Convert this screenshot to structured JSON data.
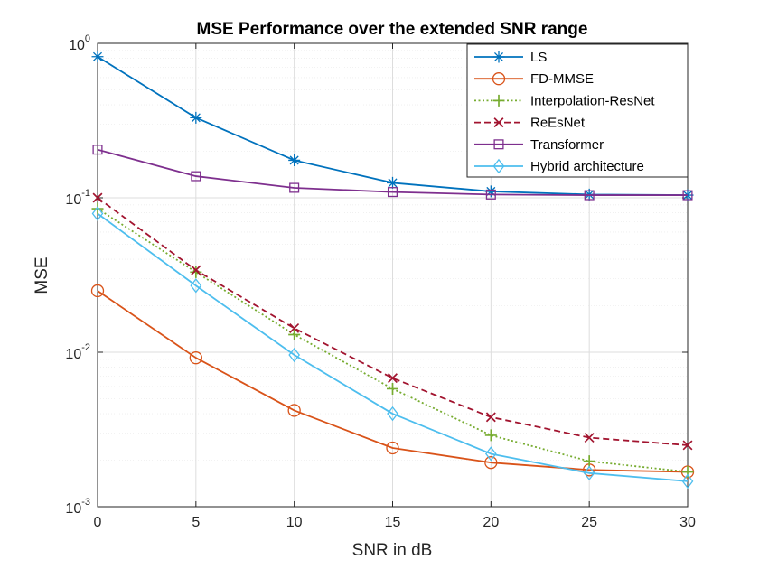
{
  "chart_data": {
    "type": "line",
    "title": "MSE Performance over the extended SNR range",
    "xlabel": "SNR in dB",
    "ylabel": "MSE",
    "y_scale": "log",
    "xlim": [
      0,
      30
    ],
    "ylim": [
      0.001,
      1
    ],
    "grid": true,
    "minor_grid": true,
    "legend_position": "top-right",
    "x": [
      0,
      5,
      10,
      15,
      20,
      25,
      30
    ],
    "x_tick_labels": [
      "0",
      "5",
      "10",
      "15",
      "20",
      "25",
      "30"
    ],
    "y_ticks": [
      {
        "value": 1,
        "base": "10",
        "exp": "0"
      },
      {
        "value": 0.1,
        "base": "10",
        "exp": "-1"
      },
      {
        "value": 0.01,
        "base": "10",
        "exp": "-2"
      },
      {
        "value": 0.001,
        "base": "10",
        "exp": "-3"
      }
    ],
    "series": [
      {
        "name": "LS",
        "color": "#0072BD",
        "dash": "solid",
        "marker": "asterisk",
        "values": [
          0.82,
          0.33,
          0.175,
          0.125,
          0.11,
          0.105,
          0.104
        ]
      },
      {
        "name": "FD-MMSE",
        "color": "#D95319",
        "dash": "solid",
        "marker": "circle",
        "values": [
          0.025,
          0.0092,
          0.0042,
          0.0024,
          0.00193,
          0.00173,
          0.00168
        ]
      },
      {
        "name": "Interpolation-ResNet",
        "color": "#77AC30",
        "dash": "dotted",
        "marker": "plus",
        "values": [
          0.085,
          0.033,
          0.013,
          0.0058,
          0.0029,
          0.00197,
          0.00168
        ]
      },
      {
        "name": "ReEsNet",
        "color": "#A2142F",
        "dash": "dashed",
        "marker": "x",
        "values": [
          0.1,
          0.034,
          0.0143,
          0.0068,
          0.0038,
          0.0028,
          0.0025
        ]
      },
      {
        "name": "Transformer",
        "color": "#7E2F8E",
        "dash": "solid",
        "marker": "square",
        "values": [
          0.205,
          0.138,
          0.116,
          0.109,
          0.105,
          0.104,
          0.104
        ]
      },
      {
        "name": "Hybrid architecture",
        "color": "#4DBEEE",
        "dash": "solid",
        "marker": "diamond",
        "values": [
          0.079,
          0.027,
          0.0096,
          0.004,
          0.0022,
          0.00165,
          0.00146
        ]
      }
    ]
  }
}
